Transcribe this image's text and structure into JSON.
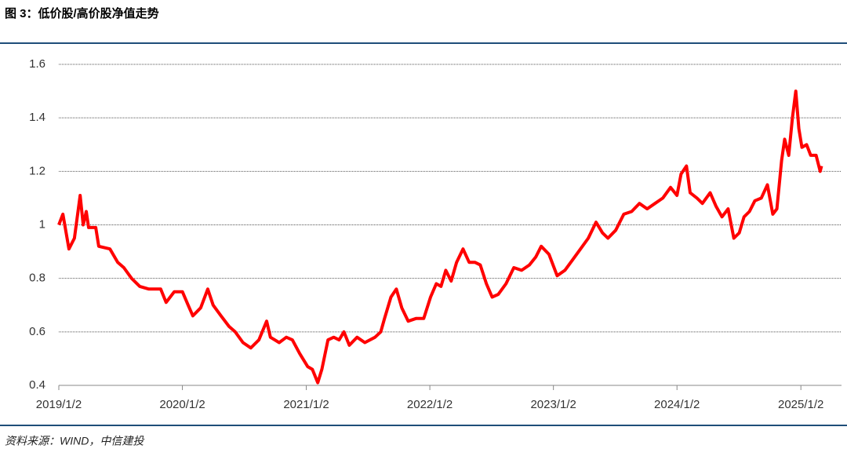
{
  "chart_data": {
    "type": "line",
    "title": "图 3：低价股/高价股净值走势",
    "source": "资料来源：WIND，中信建投",
    "color": "#ff0000",
    "grid": true,
    "x": [
      "2019/1/2",
      "2019/1/14",
      "2019/2/1",
      "2019/2/17",
      "2019/3/6",
      "2019/3/15",
      "2019/3/24",
      "2019/3/31",
      "2019/4/21",
      "2019/4/30",
      "2019/6/2",
      "2019/6/25",
      "2019/7/13",
      "2019/8/5",
      "2019/8/29",
      "2019/9/25",
      "2019/10/30",
      "2019/11/15",
      "2019/12/9",
      "2020/1/2",
      "2020/1/19",
      "2020/2/2",
      "2020/2/25",
      "2020/3/17",
      "2020/4/2",
      "2020/4/25",
      "2020/5/19",
      "2020/6/6",
      "2020/6/29",
      "2020/7/22",
      "2020/8/15",
      "2020/9/7",
      "2020/9/18",
      "2020/10/14",
      "2020/11/4",
      "2020/11/22",
      "2020/12/13",
      "2021/1/6",
      "2021/1/20",
      "2021/2/5",
      "2021/2/17",
      "2021/3/7",
      "2021/3/24",
      "2021/4/9",
      "2021/4/23",
      "2021/5/9",
      "2021/6/1",
      "2021/6/24",
      "2021/7/24",
      "2021/8/10",
      "2021/8/21",
      "2021/9/9",
      "2021/9/25",
      "2021/10/11",
      "2021/10/30",
      "2021/11/22",
      "2021/12/15",
      "2022/1/4",
      "2022/1/21",
      "2022/2/4",
      "2022/2/18",
      "2022/3/6",
      "2022/3/22",
      "2022/4/10",
      "2022/4/28",
      "2022/5/15",
      "2022/5/31",
      "2022/6/18",
      "2022/7/5",
      "2022/7/23",
      "2022/8/15",
      "2022/9/7",
      "2022/9/30",
      "2022/10/23",
      "2022/11/11",
      "2022/11/27",
      "2022/12/20",
      "2023/1/13",
      "2023/2/5",
      "2023/2/28",
      "2023/3/23",
      "2023/4/15",
      "2023/5/8",
      "2023/5/27",
      "2023/6/12",
      "2023/7/5",
      "2023/7/29",
      "2023/8/21",
      "2023/9/13",
      "2023/10/6",
      "2023/10/29",
      "2023/11/21",
      "2023/12/14",
      "2024/1/2",
      "2024/1/14",
      "2024/1/30",
      "2024/2/10",
      "2024/3/1",
      "2024/3/17",
      "2024/4/9",
      "2024/4/26",
      "2024/5/14",
      "2024/6/1",
      "2024/6/18",
      "2024/7/4",
      "2024/7/18",
      "2024/8/3",
      "2024/8/19",
      "2024/9/7",
      "2024/9/25",
      "2024/10/11",
      "2024/10/23",
      "2024/11/6",
      "2024/11/15",
      "2024/11/27",
      "2024/12/8",
      "2024/12/18",
      "2024/12/27",
      "2025/1/5",
      "2025/1/19",
      "2025/1/31",
      "2025/2/16",
      "2025/2/28",
      "2025/3/4"
    ],
    "values": [
      1.0,
      1.04,
      0.91,
      0.95,
      1.11,
      1.0,
      1.05,
      0.99,
      0.99,
      0.92,
      0.91,
      0.86,
      0.84,
      0.8,
      0.77,
      0.76,
      0.76,
      0.71,
      0.75,
      0.75,
      0.7,
      0.66,
      0.69,
      0.76,
      0.7,
      0.66,
      0.62,
      0.6,
      0.56,
      0.54,
      0.57,
      0.64,
      0.58,
      0.56,
      0.58,
      0.57,
      0.52,
      0.47,
      0.46,
      0.41,
      0.46,
      0.57,
      0.58,
      0.57,
      0.6,
      0.55,
      0.58,
      0.56,
      0.58,
      0.6,
      0.65,
      0.73,
      0.76,
      0.69,
      0.64,
      0.65,
      0.65,
      0.73,
      0.78,
      0.77,
      0.83,
      0.79,
      0.86,
      0.91,
      0.86,
      0.86,
      0.85,
      0.78,
      0.73,
      0.74,
      0.78,
      0.84,
      0.83,
      0.85,
      0.88,
      0.92,
      0.89,
      0.81,
      0.83,
      0.87,
      0.91,
      0.95,
      1.01,
      0.97,
      0.95,
      0.98,
      1.04,
      1.05,
      1.08,
      1.06,
      1.08,
      1.1,
      1.14,
      1.11,
      1.19,
      1.22,
      1.12,
      1.1,
      1.08,
      1.12,
      1.07,
      1.03,
      1.06,
      0.95,
      0.97,
      1.03,
      1.05,
      1.09,
      1.1,
      1.15,
      1.04,
      1.06,
      1.24,
      1.32,
      1.26,
      1.4,
      1.5,
      1.36,
      1.29,
      1.3,
      1.26,
      1.26,
      1.2,
      1.22
    ],
    "xlim": [
      "2019/1/2",
      "2025/5/2"
    ],
    "xticks": [
      "2019/1/2",
      "2020/1/2",
      "2021/1/2",
      "2022/1/2",
      "2023/1/2",
      "2024/1/2",
      "2025/1/2"
    ],
    "ylim": [
      0.4,
      1.6
    ],
    "yticks": [
      0.4,
      0.6,
      0.8,
      1,
      1.2,
      1.4,
      1.6
    ]
  }
}
